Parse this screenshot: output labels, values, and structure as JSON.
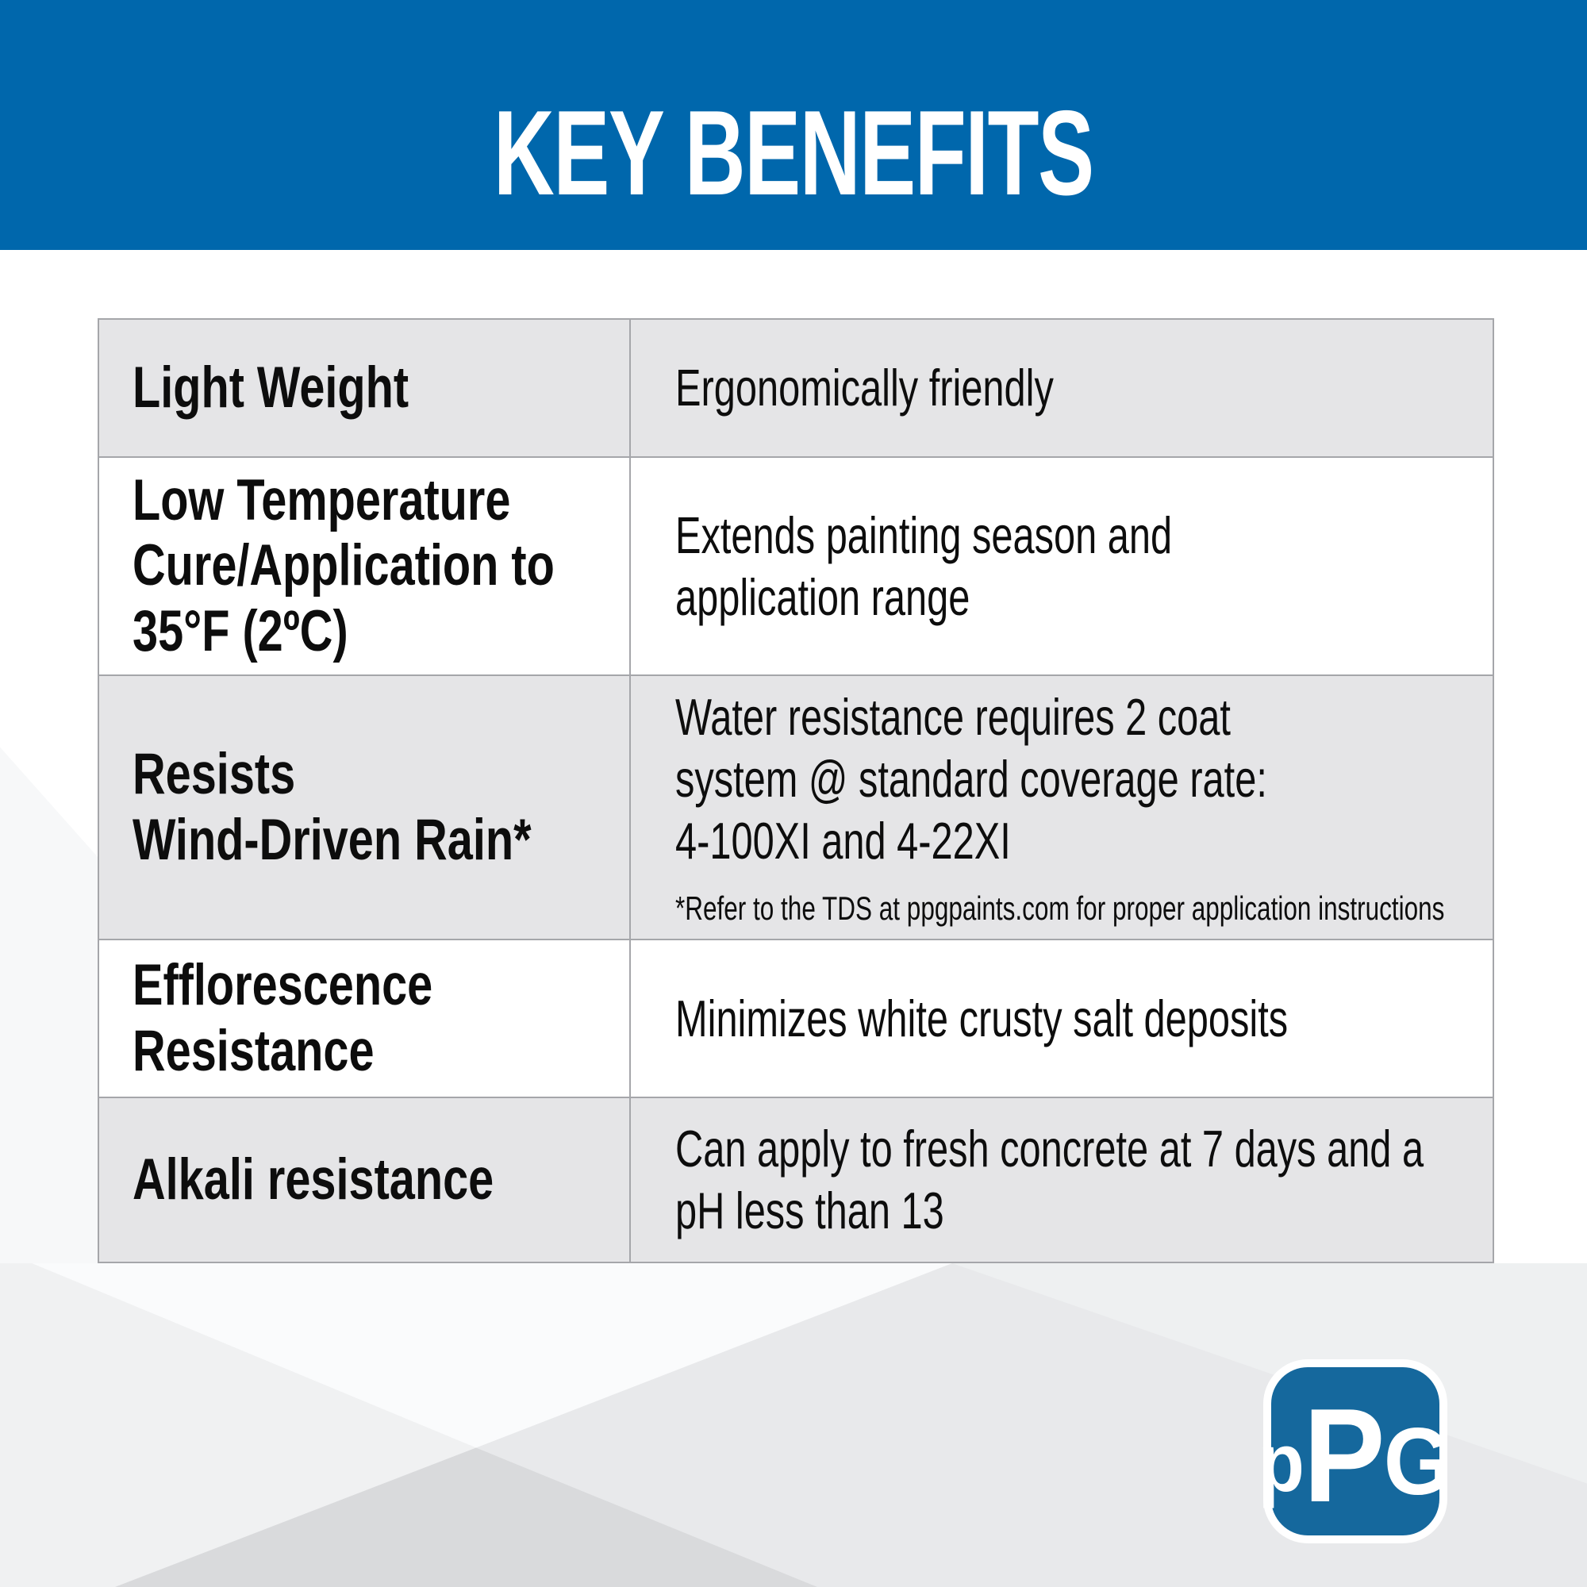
{
  "header": {
    "title": "KEY BENEFITS",
    "bg_color": "#0067ac",
    "text_color": "#ffffff"
  },
  "table": {
    "border_color": "#a5a6aa",
    "shade_color": "#e5e5e7",
    "rows": [
      {
        "feature": "Light Weight",
        "benefit": "Ergonomically friendly"
      },
      {
        "feature": "Low Temperature\nCure/Application to\n35°F (2ºC)",
        "benefit": "Extends painting season and\napplication range"
      },
      {
        "feature": "Resists\nWind-Driven Rain*",
        "benefit": "Water resistance requires 2 coat\nsystem @ standard coverage rate:\n4-100XI and 4-22XI",
        "footnote": "*Refer to the TDS at ppgpaints.com for proper application instructions"
      },
      {
        "feature": "Efflorescence\nResistance",
        "benefit": "Minimizes white crusty salt deposits"
      },
      {
        "feature": "Alkali resistance",
        "benefit": "Can apply to fresh concrete at 7 days and a\npH less than 13"
      }
    ]
  },
  "logo": {
    "letter_1": "p",
    "letter_2": "P",
    "letter_3": "G",
    "blue": "#15689d"
  }
}
